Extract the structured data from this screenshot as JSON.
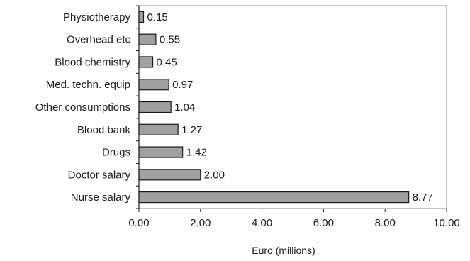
{
  "chart_data": {
    "type": "bar",
    "orientation": "horizontal",
    "categories": [
      "Physiotherapy",
      "Overhead etc",
      "Blood chemistry",
      "Med. techn. equip",
      "Other consumptions",
      "Blood bank",
      "Drugs",
      "Doctor salary",
      "Nurse salary"
    ],
    "values": [
      0.15,
      0.55,
      0.45,
      0.97,
      1.04,
      1.27,
      1.42,
      2.0,
      8.77
    ],
    "value_labels": [
      "0.15",
      "0.55",
      "0.45",
      "0.97",
      "1.04",
      "1.27",
      "1.42",
      "2.00",
      "8.77"
    ],
    "xlabel": "Euro (millions)",
    "xlim": [
      0,
      10
    ],
    "xticks": [
      "0.00",
      "2.00",
      "4.00",
      "6.00",
      "8.00",
      "10.00"
    ],
    "grid": false,
    "bar_color": "#a0a0a0",
    "bar_edge_color": "#1a1a1a"
  }
}
